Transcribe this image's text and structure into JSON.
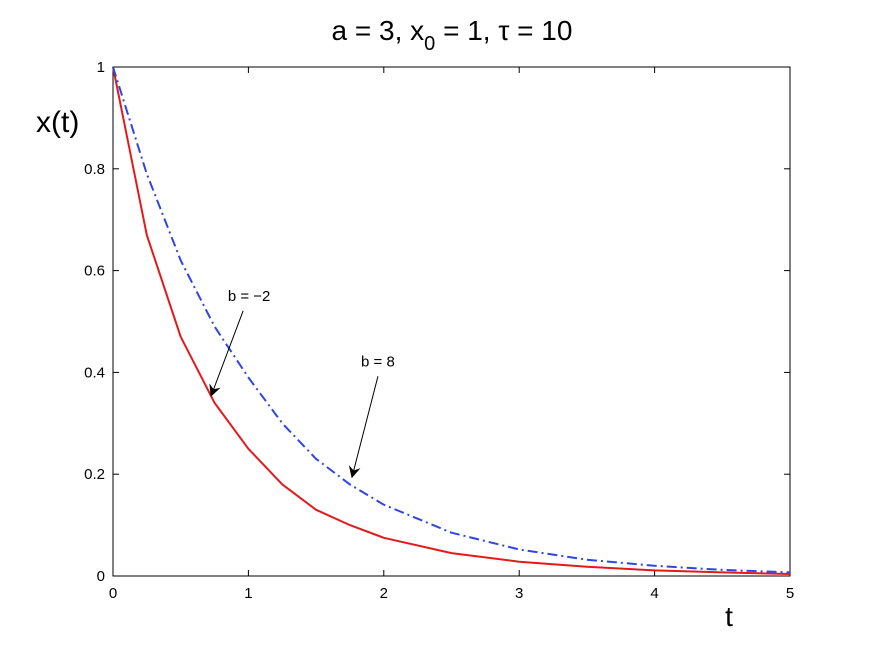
{
  "chart_data": {
    "type": "line",
    "title_parts": {
      "a": "a = 3, x",
      "sub": "0",
      "b": " = 1, τ = 10"
    },
    "xlabel": "t",
    "ylabel": "x(t)",
    "xlim": [
      0,
      5
    ],
    "ylim": [
      0,
      1
    ],
    "x_ticks": [
      "0",
      "1",
      "2",
      "3",
      "4",
      "5"
    ],
    "y_ticks": [
      "0",
      "0.2",
      "0.4",
      "0.6",
      "0.8",
      "1"
    ],
    "grid": false,
    "x": [
      0,
      0.25,
      0.5,
      0.75,
      1,
      1.25,
      1.5,
      1.75,
      2,
      2.5,
      3,
      3.5,
      4,
      4.5,
      5
    ],
    "series": [
      {
        "color": "#e31a1c",
        "style": "solid",
        "values": [
          1.0,
          0.67,
          0.47,
          0.34,
          0.25,
          0.18,
          0.13,
          0.1,
          0.075,
          0.045,
          0.028,
          0.018,
          0.011,
          0.007,
          0.004
        ]
      },
      {
        "color": "#2f45e8",
        "style": "dash-dot",
        "values": [
          1.0,
          0.79,
          0.62,
          0.49,
          0.39,
          0.3,
          0.23,
          0.18,
          0.14,
          0.085,
          0.052,
          0.032,
          0.02,
          0.012,
          0.007
        ]
      }
    ],
    "annotations": [
      {
        "text": "b = −2",
        "target_x": 0.71,
        "target_y": 0.35
      },
      {
        "text": "b = 8",
        "target_x": 1.75,
        "target_y": 0.19
      }
    ]
  }
}
